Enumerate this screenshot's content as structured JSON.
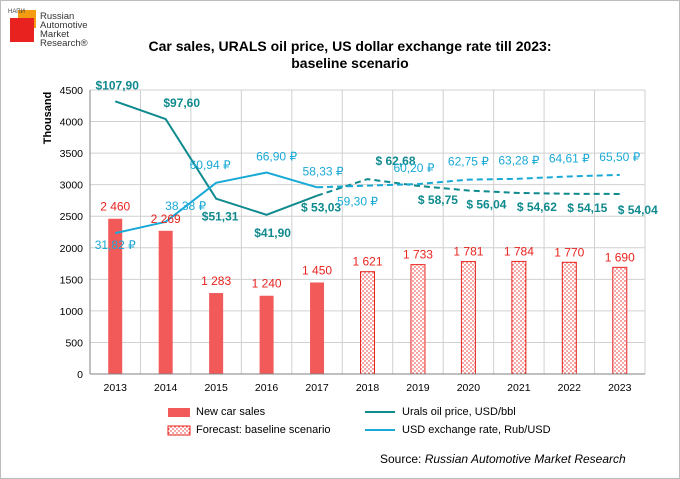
{
  "logo": {
    "small_text": "НАПИ",
    "lines": [
      "Russian",
      "Automotive",
      "Market",
      "Research®"
    ]
  },
  "title_line1": "Car sales, URALS oil price, US dollar exchange rate till 2023:",
  "title_line2": "baseline scenario",
  "source_prefix": "Source:",
  "source_name": "Russian Automotive Market Research",
  "colors": {
    "bar": "#f25a5a",
    "bar_label": "#e8231f",
    "forecast_border": "#e8231f",
    "oil": "#0f8a8e",
    "usd": "#19a9d6",
    "grid": "#d0d0d0"
  },
  "chart_data": {
    "type": "bar",
    "categories": [
      "2013",
      "2014",
      "2015",
      "2016",
      "2017",
      "2018",
      "2019",
      "2020",
      "2021",
      "2022",
      "2023"
    ],
    "ylabel": "Thousand",
    "ylim": [
      0,
      4500
    ],
    "yticks": [
      0,
      500,
      1000,
      1500,
      2000,
      2500,
      3000,
      3500,
      4000,
      4500
    ],
    "grid": true,
    "legend_position": "bottom",
    "series": [
      {
        "name": "New car sales",
        "type": "bar",
        "values": [
          2460,
          2269,
          1283,
          1240,
          1450,
          null,
          null,
          null,
          null,
          null,
          null
        ],
        "labels": [
          "2 460",
          "2 269",
          "1 283",
          "1 240",
          "1 450",
          "",
          "",
          "",
          "",
          "",
          ""
        ]
      },
      {
        "name": "Forecast: baseline scenario",
        "type": "bar",
        "values": [
          null,
          null,
          null,
          null,
          null,
          1621,
          1733,
          1781,
          1784,
          1770,
          1690
        ],
        "labels": [
          "",
          "",
          "",
          "",
          "",
          "1 621",
          "1 733",
          "1 781",
          "1 784",
          "1 770",
          "1 690"
        ]
      },
      {
        "name": "Urals oil price, USD/bbl",
        "type": "line",
        "values": [
          107.9,
          97.6,
          51.31,
          41.9,
          53.03,
          62.68,
          58.75,
          56.04,
          54.62,
          54.15,
          54.04
        ],
        "labels": [
          "$107,90",
          "$97,60",
          "$51,31",
          "$41,90",
          "$ 53,03",
          "$ 62,68",
          "$ 58,75",
          "$ 56,04",
          "$ 54,62",
          "$ 54,15",
          "$ 54,04"
        ],
        "dashed_from_index": 5
      },
      {
        "name": "USD exchange rate, Rub/USD",
        "type": "line",
        "values": [
          31.82,
          38.38,
          60.94,
          66.9,
          58.33,
          59.3,
          60.2,
          62.75,
          63.28,
          64.61,
          65.5
        ],
        "labels": [
          "31,82 ₽",
          "38,38 ₽",
          "60,94 ₽",
          "66,90 ₽",
          "58,33 ₽",
          "59,30 ₽",
          "60,20 ₽",
          "62,75 ₽",
          "63,28 ₽",
          "64,61 ₽",
          "65,50 ₽"
        ],
        "dashed_from_index": 5
      }
    ]
  }
}
